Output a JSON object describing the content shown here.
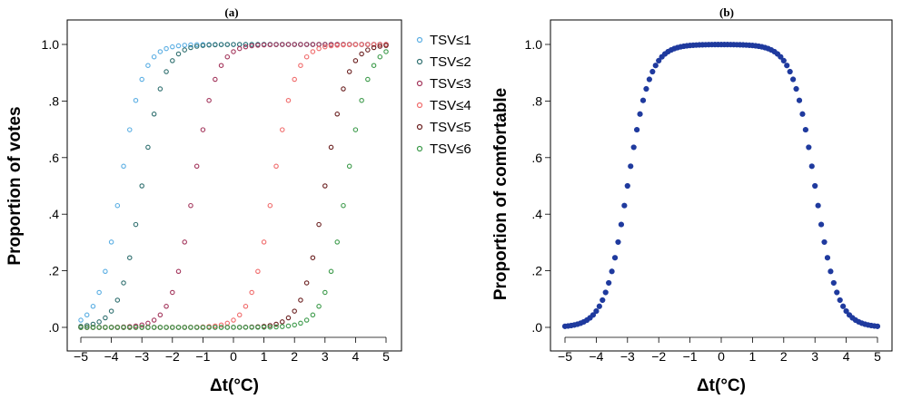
{
  "chart_data": [
    {
      "type": "scatter",
      "panel_label": "(a)",
      "xlabel": "Δt(°C)",
      "ylabel": "Proportion of votes",
      "xlim": [
        -5,
        5
      ],
      "ylim": [
        0,
        1
      ],
      "x_ticks": [
        "−5",
        "−4",
        "−3",
        "−2",
        "−1",
        "0",
        "1",
        "2",
        "3",
        "4",
        "5"
      ],
      "y_ticks": [
        ".0",
        ".2",
        ".4",
        ".6",
        ".8",
        "1.0"
      ],
      "x_step": 0.2,
      "legend_position": "right",
      "marker": "open-circle",
      "series": [
        {
          "name": "TSV≤1",
          "color": "#5aaee3",
          "midpoint": -3.7,
          "slope": 2.8
        },
        {
          "name": "TSV≤2",
          "color": "#2f6f6f",
          "midpoint": -3.0,
          "slope": 2.8
        },
        {
          "name": "TSV≤3",
          "color": "#a3355b",
          "midpoint": -1.3,
          "slope": 2.8
        },
        {
          "name": "TSV≤4",
          "color": "#f06b6b",
          "midpoint": 1.3,
          "slope": 2.8
        },
        {
          "name": "TSV≤5",
          "color": "#6a1f1f",
          "midpoint": 3.0,
          "slope": 2.8
        },
        {
          "name": "TSV≤6",
          "color": "#3c9a4a",
          "midpoint": 3.7,
          "slope": 2.8
        }
      ]
    },
    {
      "type": "scatter",
      "panel_label": "(b)",
      "xlabel": "Δt(°C)",
      "ylabel": "Proportion of comfortable",
      "xlim": [
        -5,
        5
      ],
      "ylim": [
        0,
        1
      ],
      "x_ticks": [
        "−5",
        "−4",
        "−3",
        "−2",
        "−1",
        "0",
        "1",
        "2",
        "3",
        "4",
        "5"
      ],
      "y_ticks": [
        ".0",
        ".2",
        ".4",
        ".6",
        ".8",
        "1.0"
      ],
      "x_step": 0.1,
      "marker": "filled-circle",
      "series": [
        {
          "color": "#1f3a9e",
          "rise_midpoint": -3.0,
          "fall_midpoint": 3.0,
          "slope": 2.8
        }
      ]
    }
  ]
}
